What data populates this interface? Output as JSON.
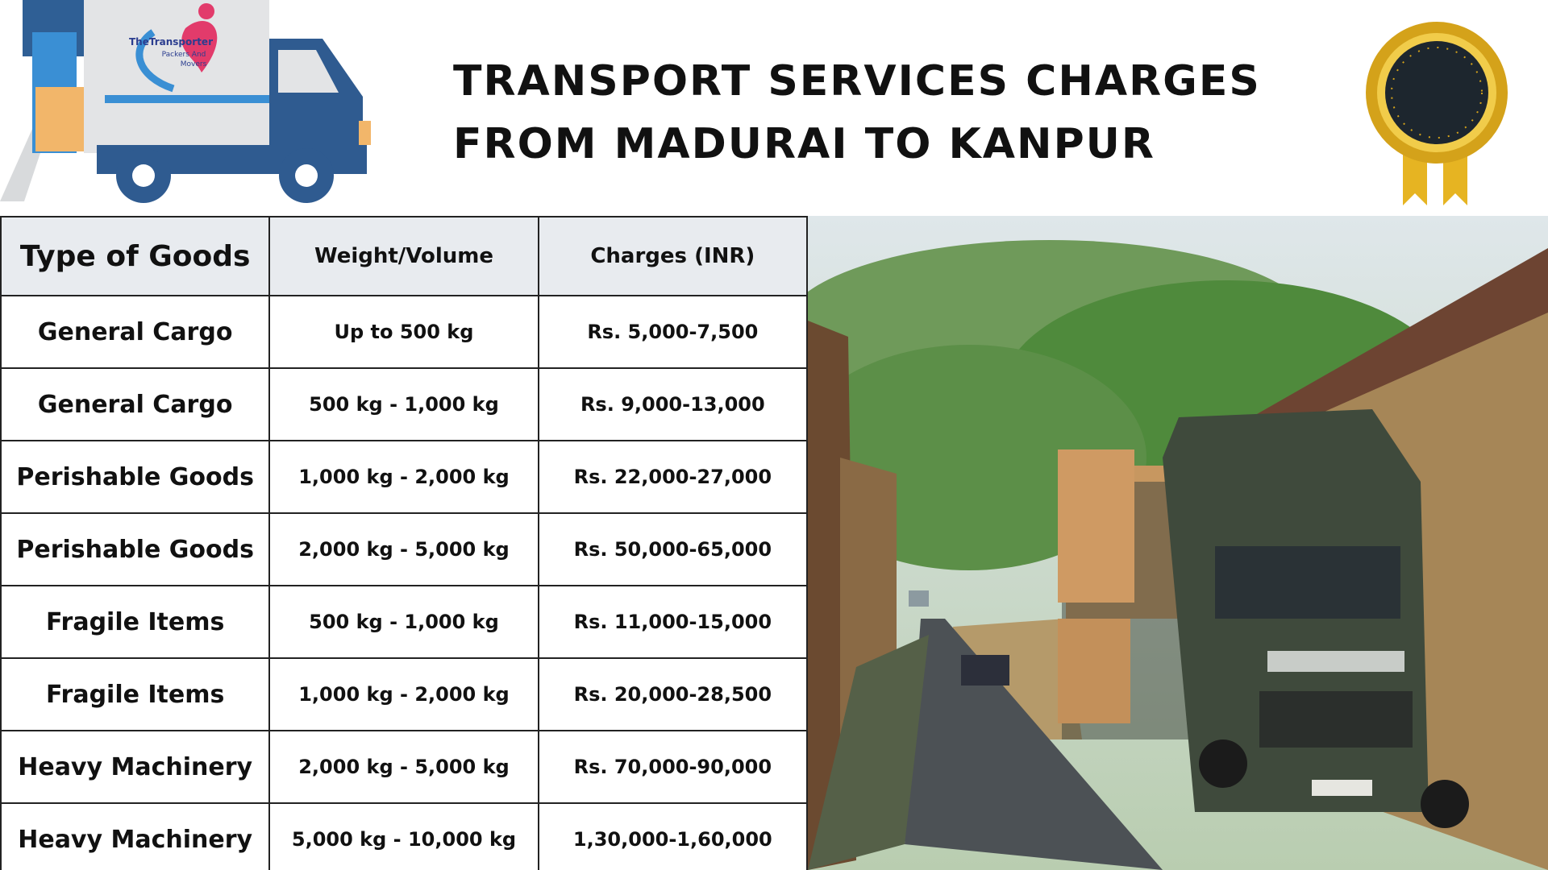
{
  "header": {
    "title_lines": [
      "TRANSPORT SERVICES CHARGES",
      "FROM MADURAI TO KANPUR"
    ],
    "logo": [
      "TheTransporter",
      "Packers And",
      "Movers"
    ]
  },
  "table": {
    "columns": [
      "Type of Goods",
      "Weight/Volume",
      "Charges (INR)"
    ],
    "rows": [
      [
        "General Cargo",
        "Up to 500 kg",
        "Rs. 5,000-7,500"
      ],
      [
        "General Cargo",
        "500 kg - 1,000 kg",
        "Rs. 9,000-13,000"
      ],
      [
        "Perishable Goods",
        "1,000 kg - 2,000 kg",
        "Rs. 22,000-27,000"
      ],
      [
        "Perishable Goods",
        "2,000 kg - 5,000 kg",
        "Rs. 50,000-65,000"
      ],
      [
        "Fragile Items",
        "500 kg - 1,000 kg",
        "Rs. 11,000-15,000"
      ],
      [
        "Fragile Items",
        "1,000 kg - 2,000 kg",
        "Rs. 20,000-28,500"
      ],
      [
        "Heavy Machinery",
        "2,000 kg - 5,000 kg",
        "Rs. 70,000-90,000"
      ],
      [
        "Heavy Machinery",
        "5,000 kg - 10,000 kg",
        "1,30,000-1,60,000"
      ]
    ]
  }
}
